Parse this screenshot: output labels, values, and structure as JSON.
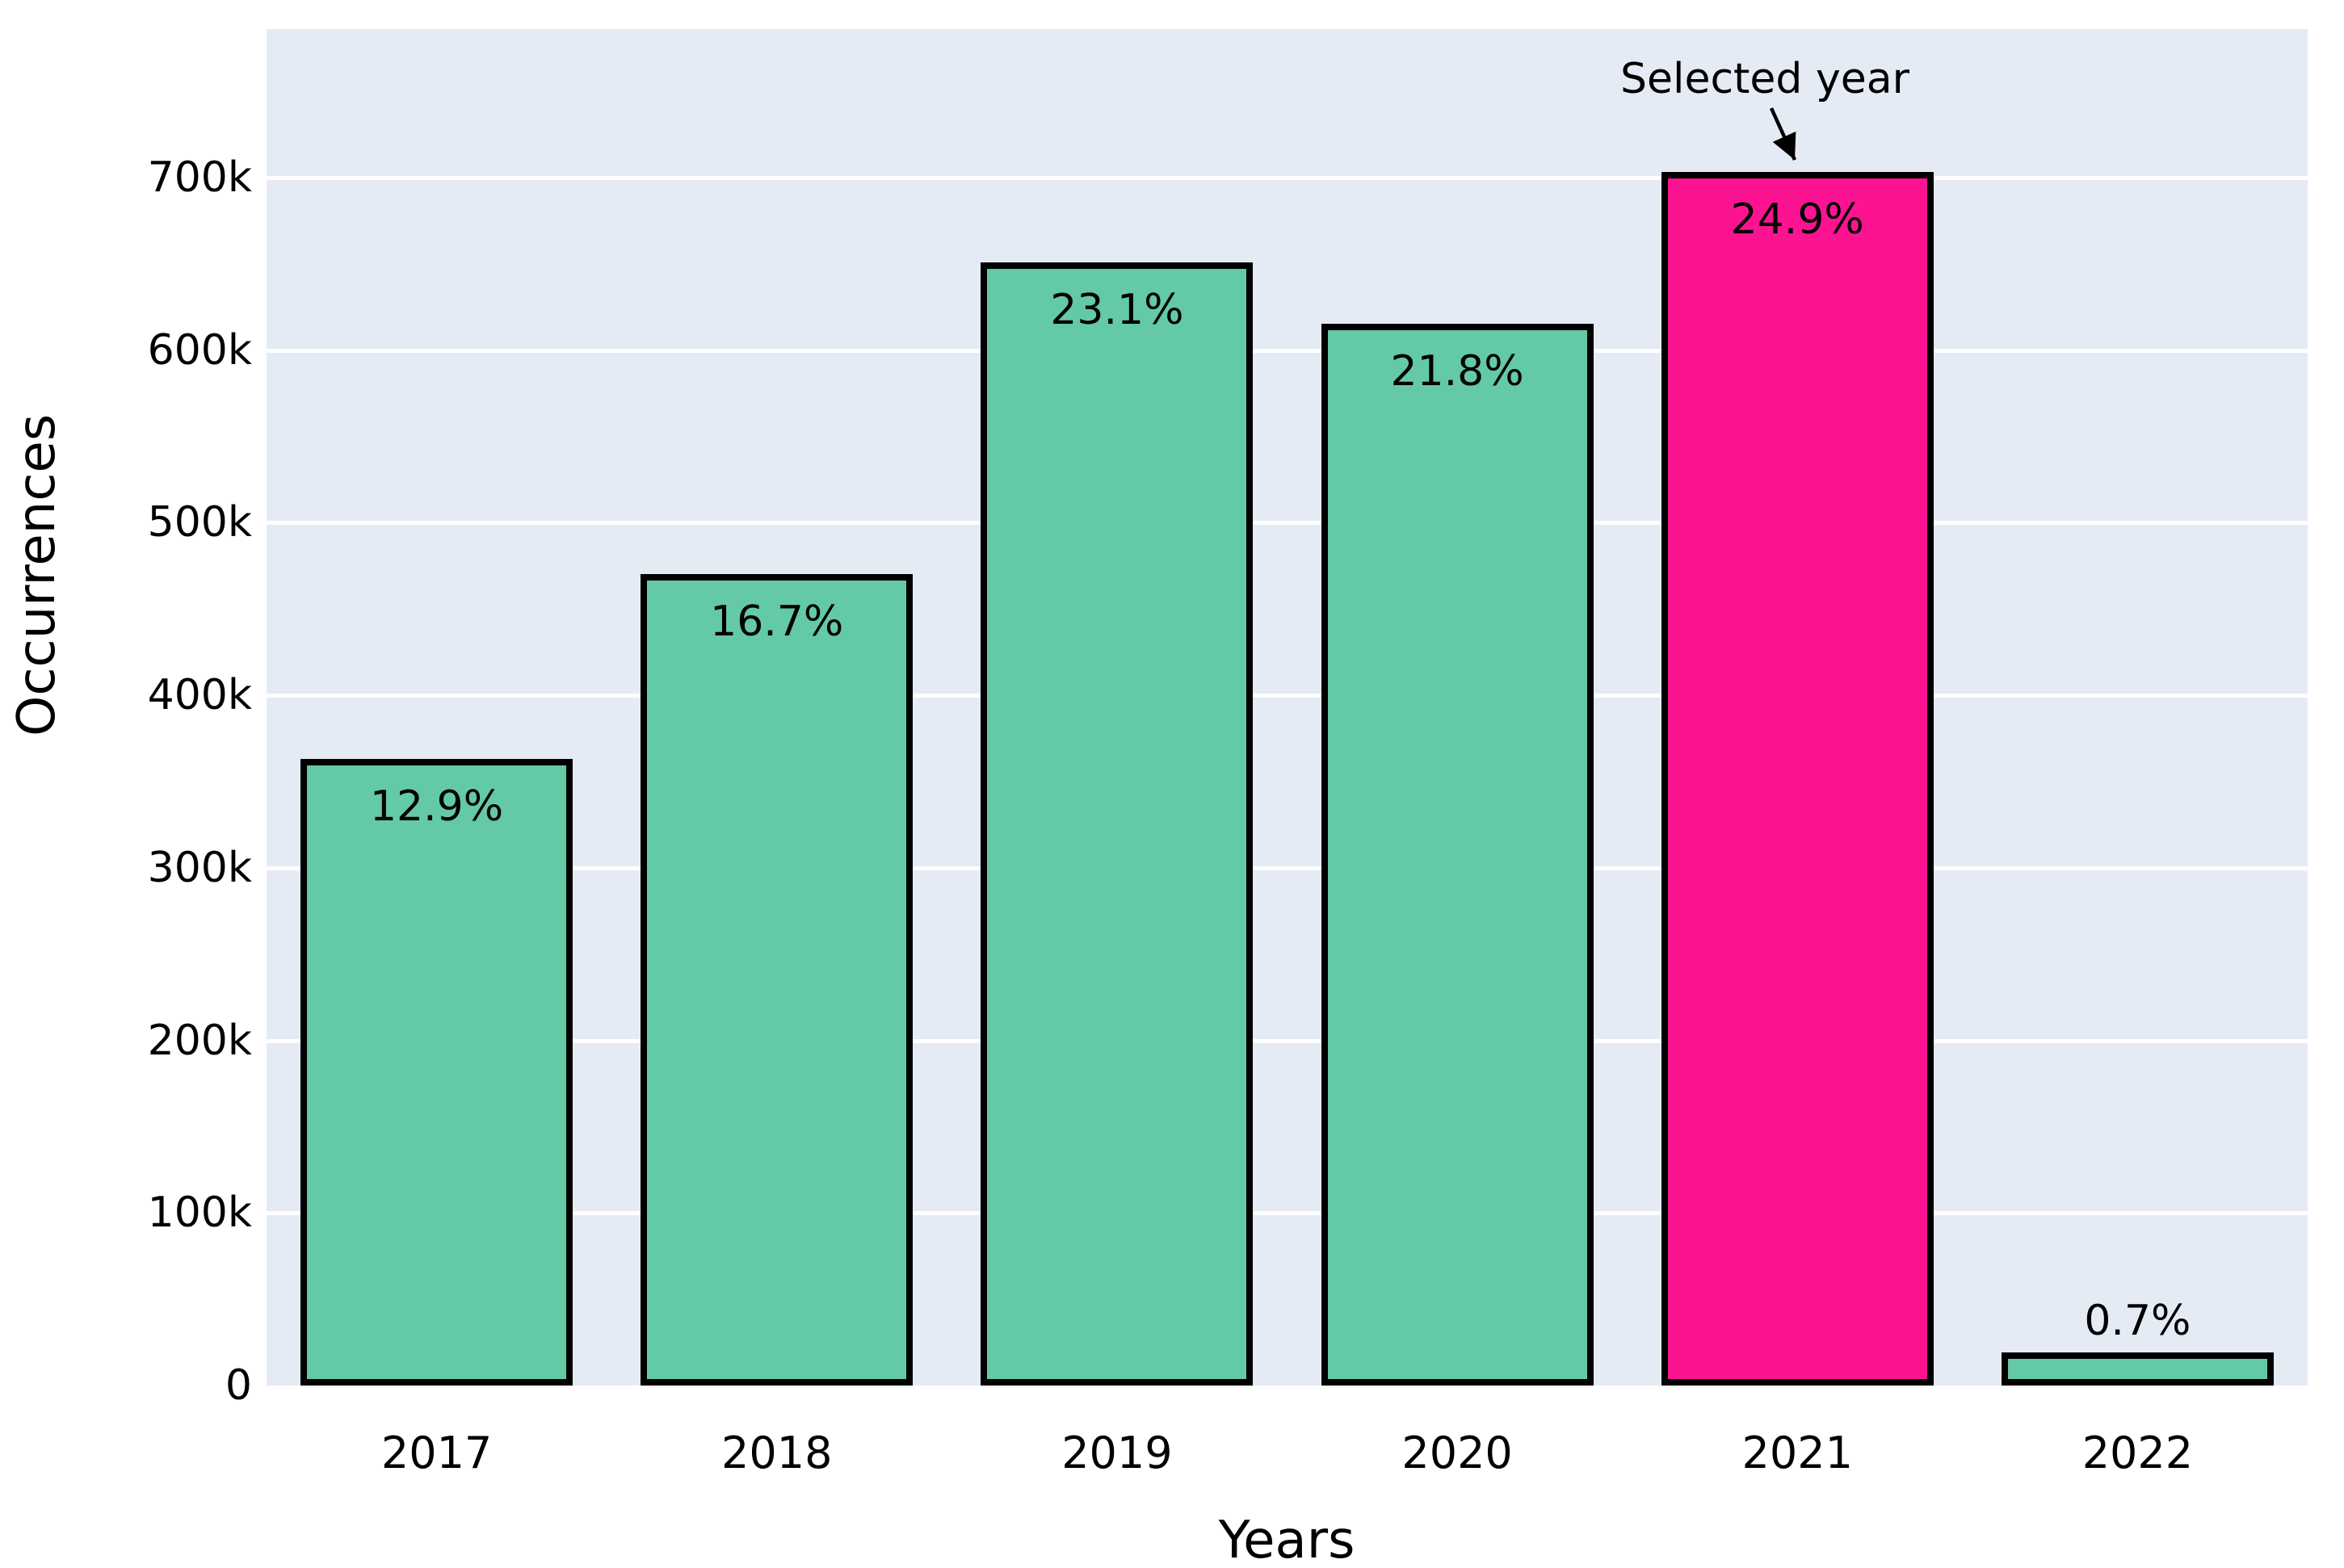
{
  "chart_data": {
    "type": "bar",
    "title": "",
    "xlabel": "Years",
    "ylabel": "Occurrences",
    "categories": [
      "2017",
      "2018",
      "2019",
      "2020",
      "2021",
      "2022"
    ],
    "values": [
      363000,
      470000,
      651000,
      615000,
      703000,
      19000
    ],
    "bar_labels": [
      "12.9%",
      "16.7%",
      "23.1%",
      "21.8%",
      "24.9%",
      "0.7%"
    ],
    "selected_index": 4,
    "annotation": {
      "text": "Selected year",
      "target_category": "2021"
    },
    "ylim": [
      0,
      786000
    ],
    "yticks": [
      {
        "value": 0,
        "label": "0"
      },
      {
        "value": 100000,
        "label": "100k"
      },
      {
        "value": 200000,
        "label": "200k"
      },
      {
        "value": 300000,
        "label": "300k"
      },
      {
        "value": 400000,
        "label": "400k"
      },
      {
        "value": 500000,
        "label": "500k"
      },
      {
        "value": 600000,
        "label": "600k"
      },
      {
        "value": 700000,
        "label": "700k"
      }
    ],
    "grid": true,
    "legend": false,
    "colors": {
      "bar": "#64C9A6",
      "selected_bar": "#FB1392",
      "bar_edge": "#000000",
      "plot_background": "#E4EBF5",
      "grid_color": "#FFFFFF",
      "text": "#000000",
      "figure_background": "#FFFFFF"
    }
  }
}
